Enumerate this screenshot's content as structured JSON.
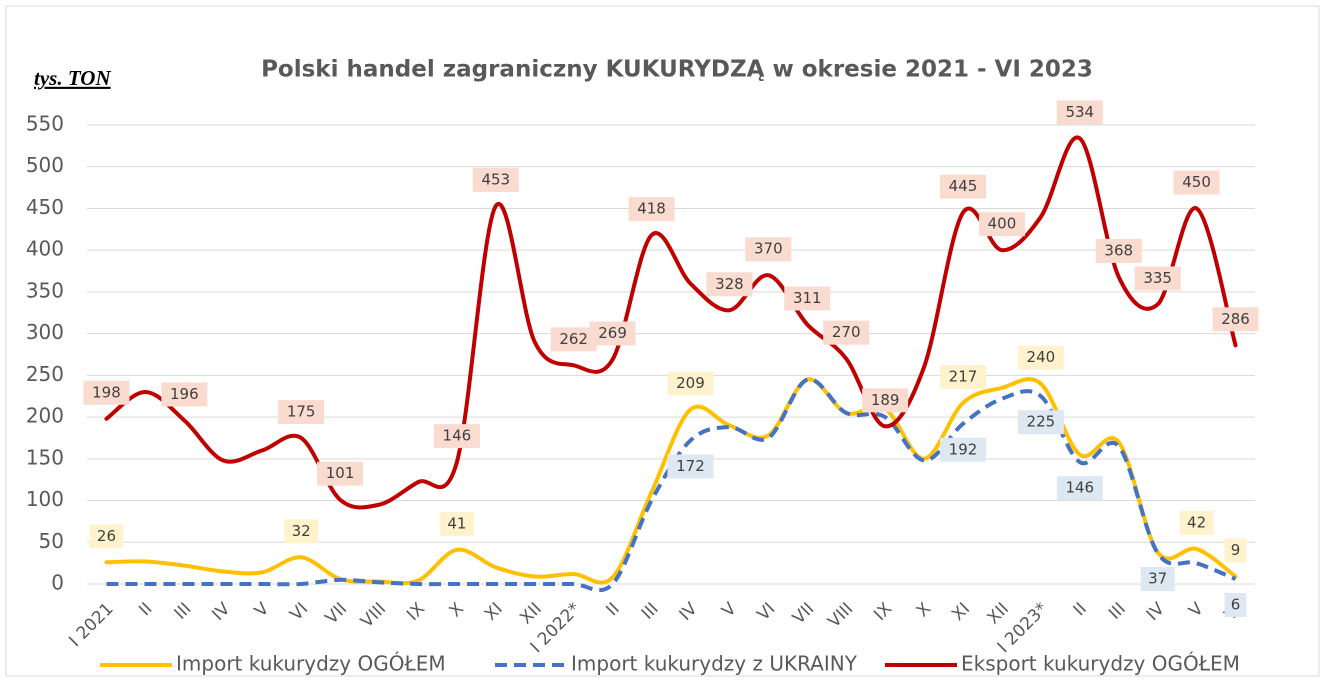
{
  "chart_data": {
    "type": "line",
    "title": "Polski handel zagraniczny KUKURYDZĄ w okresie 2021 - VI 2023",
    "y_label": "tys. TON",
    "categories": [
      "I 2021",
      "II",
      "III",
      "IV",
      "V",
      "VI",
      "VII",
      "VIII",
      "IX",
      "X",
      "XI",
      "XII",
      "I 2022*",
      "II",
      "III",
      "IV",
      "V",
      "VI",
      "VII",
      "VIII",
      "IX",
      "X",
      "XI",
      "XII",
      "I 2023*",
      "II",
      "III",
      "IV",
      "V",
      "VI"
    ],
    "ylim": [
      0,
      550
    ],
    "yticks": [
      0,
      50,
      100,
      150,
      200,
      250,
      300,
      350,
      400,
      450,
      500,
      550
    ],
    "grid": true,
    "legend": "bottom",
    "series": [
      {
        "name": "Import kukurydzy OGÓŁEM",
        "color": "#ffc000",
        "dash": false,
        "label_color": "#fff2cc",
        "label_side": "above",
        "values": [
          26,
          27,
          22,
          15,
          14,
          32,
          6,
          3,
          4,
          41,
          20,
          9,
          12,
          8,
          110,
          209,
          190,
          178,
          245,
          205,
          210,
          150,
          217,
          235,
          240,
          155,
          170,
          38,
          42,
          9
        ],
        "value_labels": [
          "26",
          null,
          null,
          null,
          null,
          "32",
          null,
          null,
          null,
          "41",
          null,
          null,
          null,
          null,
          null,
          "209",
          null,
          null,
          null,
          null,
          null,
          null,
          "217",
          null,
          "240",
          null,
          null,
          null,
          "42",
          "9"
        ]
      },
      {
        "name": "Import kukurydzy z UKRAINY",
        "color": "#4472c4",
        "dash": true,
        "label_color": "#dde8f3",
        "label_side": "below",
        "values": [
          0,
          0,
          0,
          0,
          0,
          0,
          5,
          2,
          0,
          0,
          0,
          0,
          0,
          0,
          100,
          172,
          188,
          175,
          245,
          205,
          200,
          148,
          192,
          222,
          225,
          146,
          165,
          37,
          25,
          6
        ],
        "value_labels": [
          null,
          null,
          null,
          null,
          null,
          null,
          null,
          null,
          null,
          null,
          null,
          null,
          null,
          null,
          null,
          "172",
          null,
          null,
          null,
          null,
          null,
          null,
          "192",
          null,
          "225",
          "146",
          null,
          "37",
          null,
          "6"
        ]
      },
      {
        "name": "Eksport kukurydzy OGÓŁEM",
        "color": "#c00000",
        "dash": false,
        "label_color": "#fadbd0",
        "label_side": "above",
        "values": [
          198,
          230,
          196,
          148,
          160,
          175,
          101,
          95,
          122,
          146,
          453,
          290,
          262,
          269,
          418,
          360,
          328,
          370,
          311,
          270,
          189,
          260,
          445,
          400,
          440,
          534,
          368,
          335,
          450,
          286
        ],
        "value_labels": [
          "198",
          null,
          "196",
          null,
          null,
          "175",
          "101",
          null,
          null,
          "146",
          "453",
          null,
          "262",
          "269",
          "418",
          null,
          "328",
          "370",
          "311",
          "270",
          "189",
          null,
          "445",
          "400",
          null,
          "534",
          "368",
          "335",
          "450",
          "286"
        ]
      }
    ]
  }
}
